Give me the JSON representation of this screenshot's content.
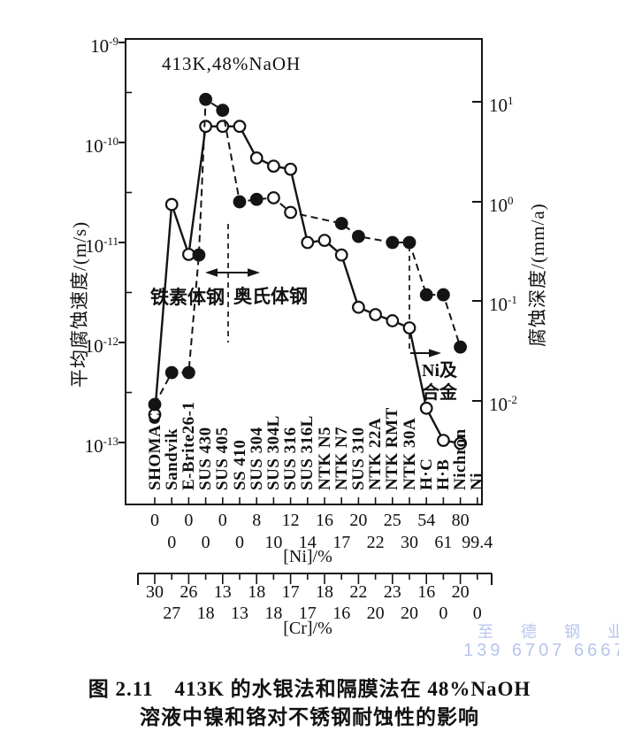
{
  "caption": {
    "line1": "图 2.11　413K 的水银法和隔膜法在 48%NaOH",
    "line2": "溶液中镍和铬对不锈钢耐蚀性的影响"
  },
  "watermark": {
    "line1": "至 德 钢 业",
    "line2": "139 6707 6667",
    "color": "#b6c5eb"
  },
  "chart_data": {
    "type": "line",
    "condition_annotation": "413K,48%NaOH",
    "left_axis": {
      "label": "平均腐蚀速度/(m/s)",
      "log_range": [
        -13,
        -9
      ],
      "ticks": [
        {
          "b": "10",
          "e": "-9"
        },
        {
          "b": "10",
          "e": "-10"
        },
        {
          "b": "10",
          "e": "-11"
        },
        {
          "b": "10",
          "e": "-12"
        },
        {
          "b": "10",
          "e": "-13"
        }
      ]
    },
    "right_axis": {
      "label": "腐蚀深度/(mm/a)",
      "ticks": [
        {
          "b": "10",
          "e": "1"
        },
        {
          "b": "10",
          "e": "0"
        },
        {
          "b": "10",
          "e": "-1"
        },
        {
          "b": "10",
          "e": "-2"
        }
      ]
    },
    "ni_axis_label": "[Ni]/%",
    "cr_axis_label": "[Cr]/%",
    "region_labels": {
      "ferritic": "铁素体钢",
      "austenitic": "奥氏体钢",
      "ni_alloy_line1": "Ni及",
      "ni_alloy_line2": "合金"
    },
    "materials": [
      {
        "name": "SHOMAC",
        "ni": "0",
        "cr": "30"
      },
      {
        "name": "Sandvik",
        "ni": "0",
        "cr": "27"
      },
      {
        "name": "E-Brite26-1",
        "ni": "0",
        "cr": "26"
      },
      {
        "name": "SUS 430",
        "ni": "0",
        "cr": "18"
      },
      {
        "name": "SUS 405",
        "ni": "0",
        "cr": "13"
      },
      {
        "name": "SS 410",
        "ni": "0",
        "cr": "13"
      },
      {
        "name": "SUS 304",
        "ni": "8",
        "cr": "18"
      },
      {
        "name": "SUS 304L",
        "ni": "10",
        "cr": "18"
      },
      {
        "name": "SUS 316",
        "ni": "12",
        "cr": "17"
      },
      {
        "name": "SUS 316L",
        "ni": "14",
        "cr": "17"
      },
      {
        "name": "NTK N5",
        "ni": "16",
        "cr": "18"
      },
      {
        "name": "NTK N7",
        "ni": "17",
        "cr": "16"
      },
      {
        "name": "SUS 310",
        "ni": "20",
        "cr": "22"
      },
      {
        "name": "NTK 22A",
        "ni": "22",
        "cr": "20"
      },
      {
        "name": "NTK RMT",
        "ni": "25",
        "cr": "23"
      },
      {
        "name": "NTK 30A",
        "ni": "30",
        "cr": "20"
      },
      {
        "name": "H·C",
        "ni": "54",
        "cr": "16"
      },
      {
        "name": "H·B",
        "ni": "61",
        "cr": "0"
      },
      {
        "name": "Nichron",
        "ni": "80",
        "cr": "20"
      },
      {
        "name": "Ni",
        "ni": "99.4",
        "cr": "0"
      }
    ],
    "series": [
      {
        "id": "series1-solid-open-circles",
        "line": "solid",
        "marker": "open",
        "points": [
          {
            "x": 0,
            "v": 1.9e-13
          },
          {
            "x": 1,
            "v": 2.4e-11
          },
          {
            "x": 2,
            "v": 7.6e-12
          },
          {
            "x": 3,
            "v": 1.45e-10
          },
          {
            "x": 4,
            "v": 1.45e-10
          },
          {
            "x": 5,
            "v": 1.45e-10
          },
          {
            "x": 6,
            "v": 7e-11
          },
          {
            "x": 7,
            "v": 5.8e-11
          },
          {
            "x": 8,
            "v": 5.4e-11
          },
          {
            "x": 9,
            "v": 1e-11
          },
          {
            "x": 10,
            "v": 1.05e-11
          },
          {
            "x": 11,
            "v": 7.5e-12
          },
          {
            "x": 12,
            "v": 2.25e-12
          },
          {
            "x": 13,
            "v": 1.9e-12
          },
          {
            "x": 14,
            "v": 1.65e-12
          },
          {
            "x": 15,
            "v": 1.4e-12
          },
          {
            "x": 16,
            "v": 2.2e-13
          },
          {
            "x": 17,
            "v": 1.05e-13
          },
          {
            "x": 18,
            "v": 9.8e-14
          }
        ]
      },
      {
        "id": "series2-dashed-filled-circles",
        "line": "dashed",
        "marker": "filled",
        "points": [
          {
            "x": 0,
            "v": 2.4e-13
          },
          {
            "x": 1,
            "v": 5e-13
          },
          {
            "x": 2,
            "v": 5e-13
          },
          {
            "x": 2.6,
            "v": 7.5e-12
          },
          {
            "x": 3,
            "v": 2.7e-10
          },
          {
            "x": 4,
            "v": 2.1e-10
          },
          {
            "x": 5,
            "v": 2.55e-11
          },
          {
            "x": 6,
            "v": 2.7e-11
          },
          {
            "x": 7,
            "v": 2.8e-11,
            "m": "open"
          },
          {
            "x": 8,
            "v": 2e-11,
            "m": "open"
          },
          {
            "x": 11,
            "v": 1.55e-11
          },
          {
            "x": 12,
            "v": 1.15e-11
          },
          {
            "x": 14,
            "v": 1e-11
          },
          {
            "x": 15,
            "v": 1e-11
          },
          {
            "x": 16,
            "v": 3e-12
          },
          {
            "x": 17,
            "v": 3e-12
          },
          {
            "x": 18,
            "v": 9e-13
          }
        ]
      }
    ]
  }
}
